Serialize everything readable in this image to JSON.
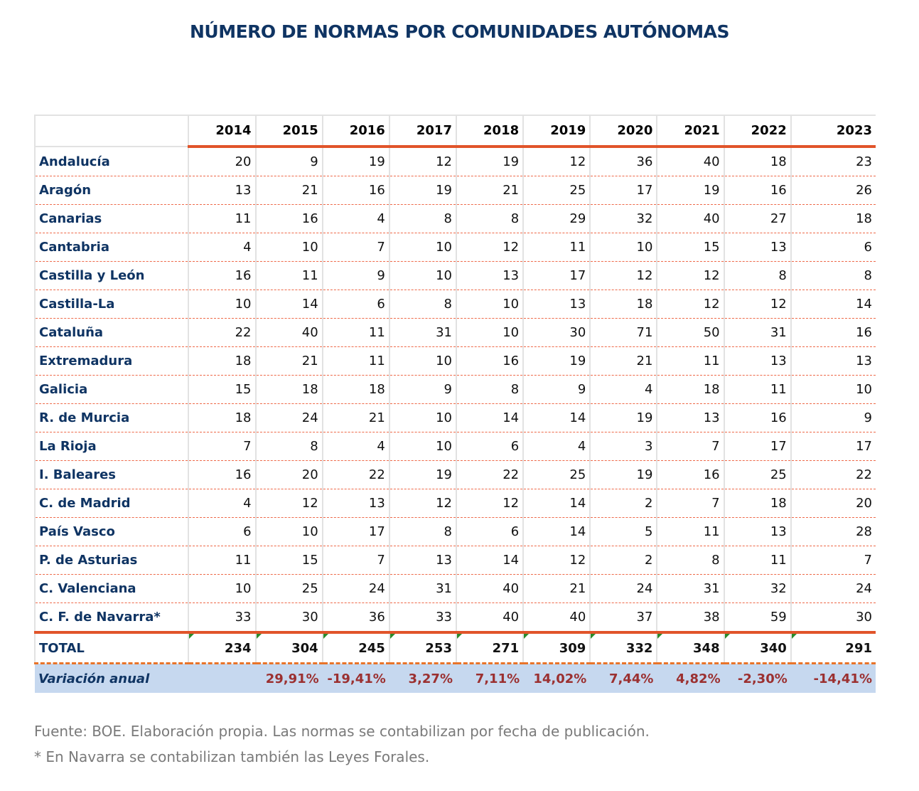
{
  "title": "NÚMERO DE NORMAS POR COMUNIDADES AUTÓNOMAS",
  "years": [
    "2014",
    "2015",
    "2016",
    "2017",
    "2018",
    "2019",
    "2020",
    "2021",
    "2022",
    "2023"
  ],
  "rows": [
    {
      "name": "Andalucía",
      "values": [
        20,
        9,
        19,
        12,
        19,
        12,
        36,
        40,
        18,
        23
      ]
    },
    {
      "name": "Aragón",
      "values": [
        13,
        21,
        16,
        19,
        21,
        25,
        17,
        19,
        16,
        26
      ]
    },
    {
      "name": "Canarias",
      "values": [
        11,
        16,
        4,
        8,
        8,
        29,
        32,
        40,
        27,
        18
      ]
    },
    {
      "name": "Cantabria",
      "values": [
        4,
        10,
        7,
        10,
        12,
        11,
        10,
        15,
        13,
        6
      ]
    },
    {
      "name": "Castilla y León",
      "values": [
        16,
        11,
        9,
        10,
        13,
        17,
        12,
        12,
        8,
        8
      ]
    },
    {
      "name": "Castilla-La",
      "values": [
        10,
        14,
        6,
        8,
        10,
        13,
        18,
        12,
        12,
        14
      ]
    },
    {
      "name": "Cataluña",
      "values": [
        22,
        40,
        11,
        31,
        10,
        30,
        71,
        50,
        31,
        16
      ]
    },
    {
      "name": "Extremadura",
      "values": [
        18,
        21,
        11,
        10,
        16,
        19,
        21,
        11,
        13,
        13
      ]
    },
    {
      "name": "Galicia",
      "values": [
        15,
        18,
        18,
        9,
        8,
        9,
        4,
        18,
        11,
        10
      ]
    },
    {
      "name": "R. de Murcia",
      "values": [
        18,
        24,
        21,
        10,
        14,
        14,
        19,
        13,
        16,
        9
      ]
    },
    {
      "name": "La Rioja",
      "values": [
        7,
        8,
        4,
        10,
        6,
        4,
        3,
        7,
        17,
        17
      ]
    },
    {
      "name": "I. Baleares",
      "values": [
        16,
        20,
        22,
        19,
        22,
        25,
        19,
        16,
        25,
        22
      ]
    },
    {
      "name": "C. de Madrid",
      "values": [
        4,
        12,
        13,
        12,
        12,
        14,
        2,
        7,
        18,
        20
      ]
    },
    {
      "name": "País Vasco",
      "values": [
        6,
        10,
        17,
        8,
        6,
        14,
        5,
        11,
        13,
        28
      ]
    },
    {
      "name": "P. de Asturias",
      "values": [
        11,
        15,
        7,
        13,
        14,
        12,
        2,
        8,
        11,
        7
      ]
    },
    {
      "name": "C. Valenciana",
      "values": [
        10,
        25,
        24,
        31,
        40,
        21,
        24,
        31,
        32,
        24
      ]
    },
    {
      "name": "C. F. de Navarra*",
      "values": [
        33,
        30,
        36,
        33,
        40,
        40,
        37,
        38,
        59,
        30
      ]
    }
  ],
  "total": {
    "name": "TOTAL",
    "values": [
      234,
      304,
      245,
      253,
      271,
      309,
      332,
      348,
      340,
      291
    ]
  },
  "variation": {
    "name": "Variación anual",
    "values": [
      "",
      "29,91%",
      "-19,41%",
      "3,27%",
      "7,11%",
      "14,02%",
      "7,44%",
      "4,82%",
      "-2,30%",
      "-14,41%"
    ]
  },
  "footnotes": [
    "Fuente: BOE. Elaboración propia. Las normas se contabilizan por fecha de publicación.",
    "* En Navarra se contabilizan también las Leyes Forales."
  ],
  "colors": {
    "title": "#0f3463",
    "accent": "#e1542a",
    "variation_bg": "#c6d8ef",
    "variation_text": "#9b3030"
  }
}
